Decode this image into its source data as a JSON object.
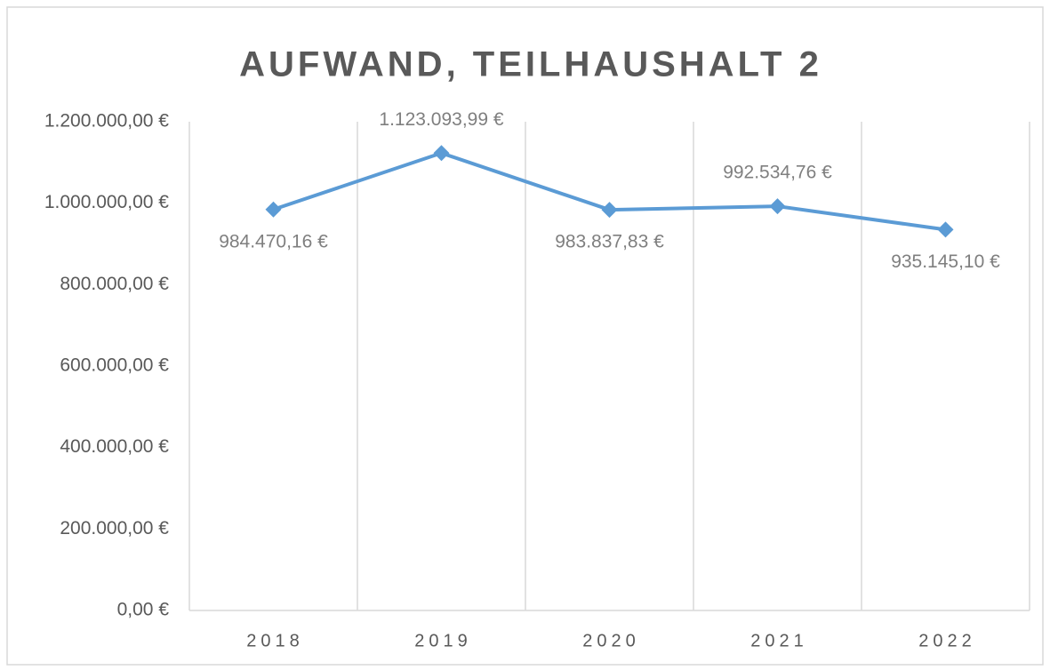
{
  "chart_data": {
    "type": "line",
    "title": "AUFWAND, TEILHAUSHALT 2",
    "categories": [
      "2018",
      "2019",
      "2020",
      "2021",
      "2022"
    ],
    "series": [
      {
        "name": "Aufwand",
        "color": "#5b9bd5",
        "values": [
          984470.16,
          1123093.99,
          983837.83,
          992534.76,
          935145.1
        ],
        "value_labels": [
          "984.470,16 €",
          "1.123.093,99 €",
          "983.837,83 €",
          "992.534,76 €",
          "935.145,10 €"
        ]
      }
    ],
    "ylim": [
      0,
      1200000
    ],
    "yticks": [
      {
        "value": 0,
        "label": "0,00 €"
      },
      {
        "value": 200000,
        "label": "200.000,00 €"
      },
      {
        "value": 400000,
        "label": "400.000,00 €"
      },
      {
        "value": 600000,
        "label": "600.000,00 €"
      },
      {
        "value": 800000,
        "label": "800.000,00 €"
      },
      {
        "value": 1000000,
        "label": "1.000.000,00 €"
      },
      {
        "value": 1200000,
        "label": "1.200.000,00 €"
      }
    ]
  }
}
